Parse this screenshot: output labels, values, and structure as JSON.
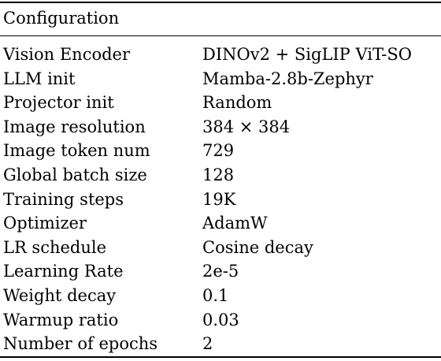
{
  "table": {
    "header": "Configuration",
    "rows": [
      {
        "key": "Vision Encoder",
        "value": "DINOv2 + SigLIP ViT-SO"
      },
      {
        "key": "LLM init",
        "value": "Mamba-2.8b-Zephyr"
      },
      {
        "key": "Projector init",
        "value": "Random"
      },
      {
        "key": "Image resolution",
        "value": "384 × 384"
      },
      {
        "key": "Image token num",
        "value": "729"
      },
      {
        "key": "Global batch size",
        "value": "128"
      },
      {
        "key": "Training steps",
        "value": "19K"
      },
      {
        "key": "Optimizer",
        "value": "AdamW"
      },
      {
        "key": "LR schedule",
        "value": "Cosine decay"
      },
      {
        "key": "Learning Rate",
        "value": "2e-5"
      },
      {
        "key": "Weight decay",
        "value": "0.1"
      },
      {
        "key": "Warmup ratio",
        "value": "0.03"
      },
      {
        "key": "Number of epochs",
        "value": "2"
      }
    ]
  }
}
